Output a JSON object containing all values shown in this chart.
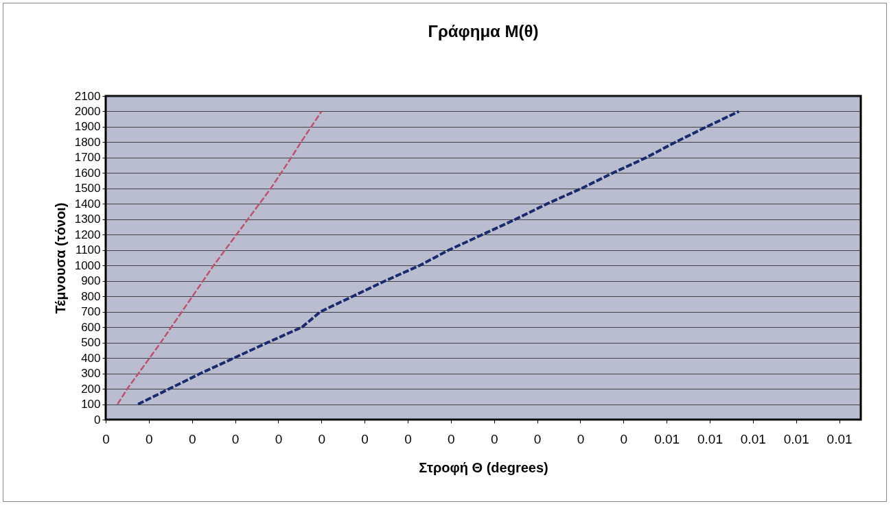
{
  "chart_data": {
    "type": "line",
    "title": "Γράφημα M(θ)",
    "xlabel": "Στροφή Θ (degrees)",
    "ylabel": "Τέμνουσα (τόνοι)",
    "xlim": [
      0,
      0.007
    ],
    "ylim": [
      0,
      2100
    ],
    "xticks": [
      {
        "value": 0,
        "label": "0"
      },
      {
        "value": 0.0004,
        "label": "0"
      },
      {
        "value": 0.0008,
        "label": "0"
      },
      {
        "value": 0.0012,
        "label": "0"
      },
      {
        "value": 0.0016,
        "label": "0"
      },
      {
        "value": 0.002,
        "label": "0"
      },
      {
        "value": 0.0024,
        "label": "0"
      },
      {
        "value": 0.0028,
        "label": "0"
      },
      {
        "value": 0.0032,
        "label": "0"
      },
      {
        "value": 0.0036,
        "label": "0"
      },
      {
        "value": 0.004,
        "label": "0"
      },
      {
        "value": 0.0044,
        "label": "0"
      },
      {
        "value": 0.0048,
        "label": "0"
      },
      {
        "value": 0.0052,
        "label": "0.01"
      },
      {
        "value": 0.0056,
        "label": "0.01"
      },
      {
        "value": 0.006,
        "label": "0.01"
      },
      {
        "value": 0.0064,
        "label": "0.01"
      },
      {
        "value": 0.0068,
        "label": "0.01"
      }
    ],
    "yticks": [
      0,
      100,
      200,
      300,
      400,
      500,
      600,
      700,
      800,
      900,
      1000,
      1100,
      1200,
      1300,
      1400,
      1500,
      1600,
      1700,
      1800,
      1900,
      2000,
      2100
    ],
    "grid": "y",
    "marker": "none",
    "series": [
      {
        "color": "#c0506e",
        "line_style": "dashed",
        "x": [
          0.00011,
          0.0002,
          0.00051,
          0.001,
          0.00153,
          0.00172,
          0.00181,
          0.002
        ],
        "values": [
          100,
          200,
          500,
          1000,
          1500,
          1700,
          1800,
          2000
        ]
      },
      {
        "color": "#1a2a6c",
        "line_style": "dashed",
        "x": [
          0.0003,
          0.00059,
          0.00088,
          0.00119,
          0.0015,
          0.00182,
          0.00199,
          0.00229,
          0.00259,
          0.00291,
          0.00318,
          0.00349,
          0.0038,
          0.00409,
          0.00441,
          0.0047,
          0.00501,
          0.00528,
          0.00557,
          0.00587
        ],
        "values": [
          100,
          200,
          300,
          400,
          500,
          600,
          700,
          800,
          900,
          1000,
          1100,
          1200,
          1300,
          1400,
          1500,
          1600,
          1700,
          1800,
          1900,
          2000
        ]
      }
    ]
  }
}
